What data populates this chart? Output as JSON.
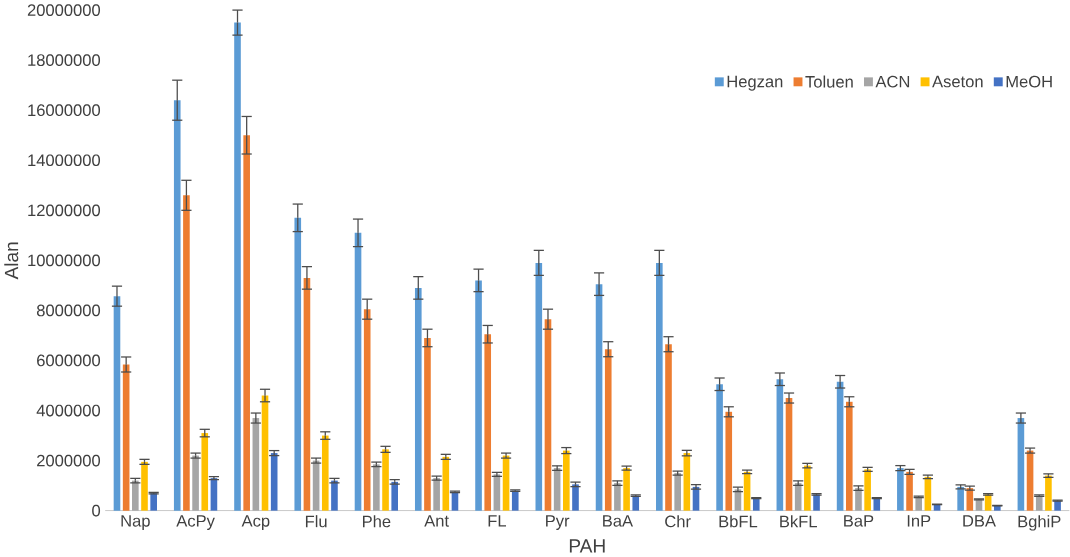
{
  "chart_data": {
    "type": "bar",
    "xlabel": "PAH",
    "ylabel": "Alan",
    "categories": [
      "Nap",
      "AcPy",
      "Acp",
      "Flu",
      "Phe",
      "Ant",
      "FL",
      "Pyr",
      "BaA",
      "Chr",
      "BbFL",
      "BkFL",
      "BaP",
      "InP",
      "DBA",
      "BghiP"
    ],
    "series": [
      {
        "name": "Hegzan",
        "color": "#5b9bd5",
        "values": [
          8570000,
          16400000,
          19500000,
          11700000,
          11100000,
          8900000,
          9200000,
          9900000,
          9050000,
          9900000,
          5050000,
          5250000,
          5150000,
          1700000,
          950000,
          3700000
        ],
        "errors": [
          400000,
          800000,
          500000,
          550000,
          550000,
          450000,
          450000,
          500000,
          450000,
          500000,
          250000,
          250000,
          250000,
          100000,
          80000,
          200000
        ]
      },
      {
        "name": "Toluen",
        "color": "#ed7d31",
        "values": [
          5840000,
          12600000,
          15000000,
          9300000,
          8050000,
          6900000,
          7050000,
          7650000,
          6450000,
          6650000,
          3950000,
          4500000,
          4350000,
          1550000,
          900000,
          2400000
        ],
        "errors": [
          300000,
          600000,
          750000,
          450000,
          400000,
          350000,
          350000,
          400000,
          300000,
          300000,
          200000,
          200000,
          200000,
          100000,
          80000,
          100000
        ]
      },
      {
        "name": "ACN",
        "color": "#a5a5a5",
        "values": [
          1200000,
          2200000,
          3700000,
          2000000,
          1850000,
          1300000,
          1450000,
          1700000,
          1100000,
          1500000,
          850000,
          1100000,
          900000,
          550000,
          450000,
          600000
        ],
        "errors": [
          90000,
          100000,
          200000,
          100000,
          90000,
          80000,
          80000,
          90000,
          90000,
          80000,
          90000,
          90000,
          90000,
          30000,
          20000,
          30000
        ]
      },
      {
        "name": "Aseton",
        "color": "#ffc000",
        "values": [
          1950000,
          3100000,
          4600000,
          3000000,
          2450000,
          2150000,
          2200000,
          2400000,
          1700000,
          2300000,
          1550000,
          1800000,
          1650000,
          1350000,
          650000,
          1400000
        ],
        "errors": [
          100000,
          150000,
          250000,
          150000,
          120000,
          100000,
          100000,
          120000,
          80000,
          110000,
          70000,
          90000,
          80000,
          70000,
          30000,
          70000
        ]
      },
      {
        "name": "MeOH",
        "color": "#4472c4",
        "values": [
          700000,
          1300000,
          2300000,
          1200000,
          1150000,
          750000,
          800000,
          1050000,
          600000,
          950000,
          500000,
          650000,
          500000,
          250000,
          200000,
          400000
        ],
        "errors": [
          30000,
          60000,
          100000,
          90000,
          90000,
          30000,
          30000,
          90000,
          30000,
          90000,
          20000,
          30000,
          20000,
          10000,
          10000,
          20000
        ]
      }
    ],
    "ylim": [
      0,
      20000000
    ],
    "yticks": [
      0,
      2000000,
      4000000,
      6000000,
      8000000,
      10000000,
      12000000,
      14000000,
      16000000,
      18000000,
      20000000
    ],
    "legend": "top right",
    "grid": false
  }
}
